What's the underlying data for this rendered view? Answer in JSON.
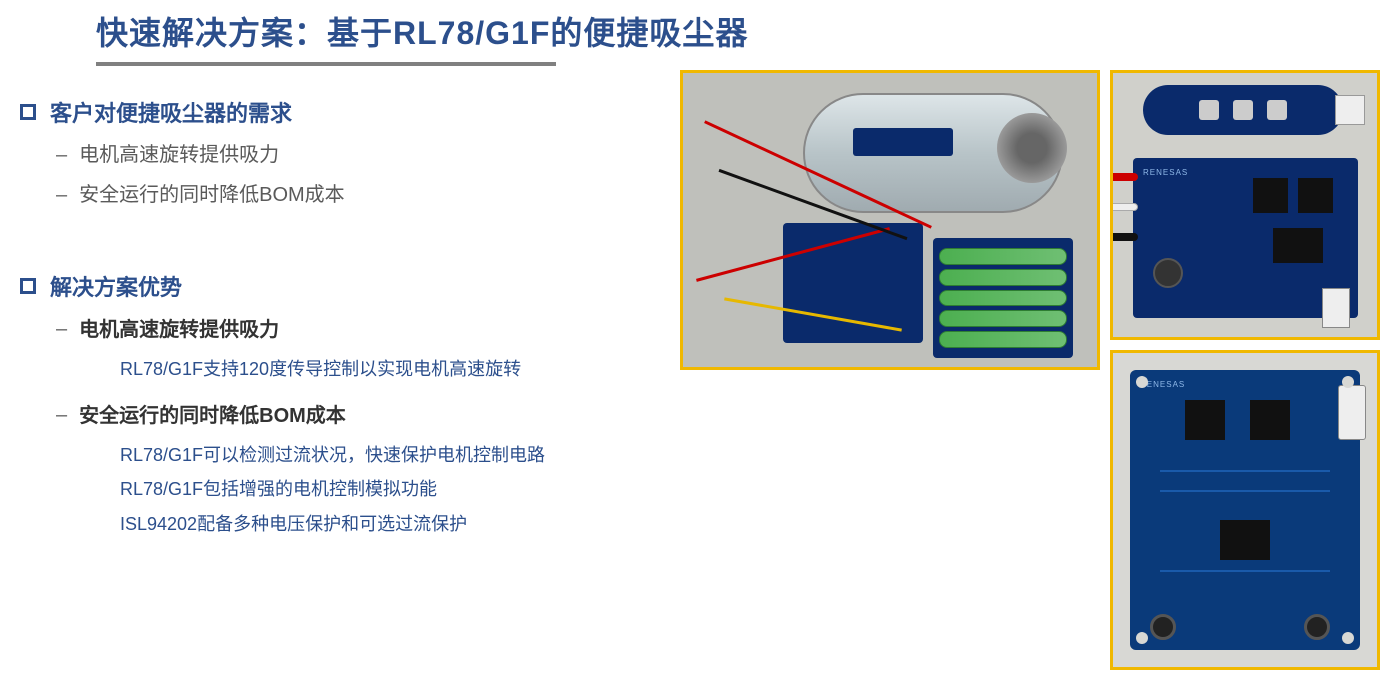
{
  "title": "快速解决方案：基于RL78/G1F的便捷吸尘器",
  "colors": {
    "heading": "#2c4f8c",
    "underline": "#808080",
    "body_text": "#5a5a5a",
    "bold_text": "#333333",
    "detail_text": "#2c4f8c",
    "image_border": "#f0b800",
    "pcb_blue": "#0a2a6b",
    "battery_green": "#4caf50"
  },
  "section1": {
    "heading": "客户对便捷吸尘器的需求",
    "items": [
      "电机高速旋转提供吸力",
      "安全运行的同时降低BOM成本"
    ]
  },
  "section2": {
    "heading": "解决方案优势",
    "groups": [
      {
        "title": "电机高速旋转提供吸力",
        "details": [
          "RL78/G1F支持120度传导控制以实现电机高速旋转"
        ]
      },
      {
        "title": "安全运行的同时降低BOM成本",
        "details": [
          "RL78/G1F可以检测过流状况，快速保护电机控制电路",
          "RL78/G1F包括增强的电机控制模拟功能",
          "ISL94202配备多种电压保护和可选过流保护"
        ]
      }
    ]
  },
  "images": {
    "img1_alt": "vacuum-prototype-assembly-photo",
    "img2_alt": "motor-driver-pcb-photo",
    "img3_alt": "renesas-main-control-pcb-photo",
    "pcb_brand": "RENESAS"
  }
}
